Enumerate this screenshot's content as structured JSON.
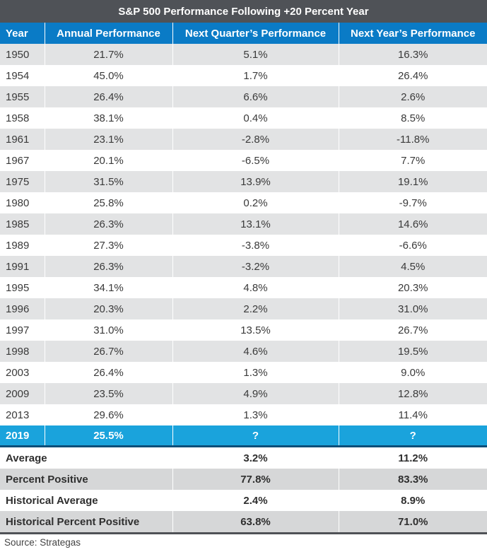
{
  "chart_data": {
    "type": "table",
    "title": "S&P 500 Performance Following +20 Percent Year",
    "columns": [
      "Year",
      "Annual Performance",
      "Next Quarter’s Performance",
      "Next Year’s Performance"
    ],
    "rows": [
      [
        "1950",
        "21.7%",
        "5.1%",
        "16.3%"
      ],
      [
        "1954",
        "45.0%",
        "1.7%",
        "26.4%"
      ],
      [
        "1955",
        "26.4%",
        "6.6%",
        "2.6%"
      ],
      [
        "1958",
        "38.1%",
        "0.4%",
        "8.5%"
      ],
      [
        "1961",
        "23.1%",
        "-2.8%",
        "-11.8%"
      ],
      [
        "1967",
        "20.1%",
        "-6.5%",
        "7.7%"
      ],
      [
        "1975",
        "31.5%",
        "13.9%",
        "19.1%"
      ],
      [
        "1980",
        "25.8%",
        "0.2%",
        "-9.7%"
      ],
      [
        "1985",
        "26.3%",
        "13.1%",
        "14.6%"
      ],
      [
        "1989",
        "27.3%",
        "-3.8%",
        "-6.6%"
      ],
      [
        "1991",
        "26.3%",
        "-3.2%",
        "4.5%"
      ],
      [
        "1995",
        "34.1%",
        "4.8%",
        "20.3%"
      ],
      [
        "1996",
        "20.3%",
        "2.2%",
        "31.0%"
      ],
      [
        "1997",
        "31.0%",
        "13.5%",
        "26.7%"
      ],
      [
        "1998",
        "26.7%",
        "4.6%",
        "19.5%"
      ],
      [
        "2003",
        "26.4%",
        "1.3%",
        "9.0%"
      ],
      [
        "2009",
        "23.5%",
        "4.9%",
        "12.8%"
      ],
      [
        "2013",
        "29.6%",
        "1.3%",
        "11.4%"
      ]
    ],
    "highlight_row": [
      "2019",
      "25.5%",
      "?",
      "?"
    ],
    "summary_rows": [
      [
        "Average",
        "3.2%",
        "11.2%"
      ],
      [
        "Percent Positive",
        "77.8%",
        "83.3%"
      ],
      [
        "Historical Average",
        "2.4%",
        "8.9%"
      ],
      [
        "Historical Percent Positive",
        "63.8%",
        "71.0%"
      ]
    ],
    "source": "Source: Strategas"
  },
  "colors": {
    "title_bg": "#4f5257",
    "header_bg": "#0a7bc6",
    "highlight_bg": "#1aa3dc",
    "row_shade": "#e2e3e4"
  }
}
